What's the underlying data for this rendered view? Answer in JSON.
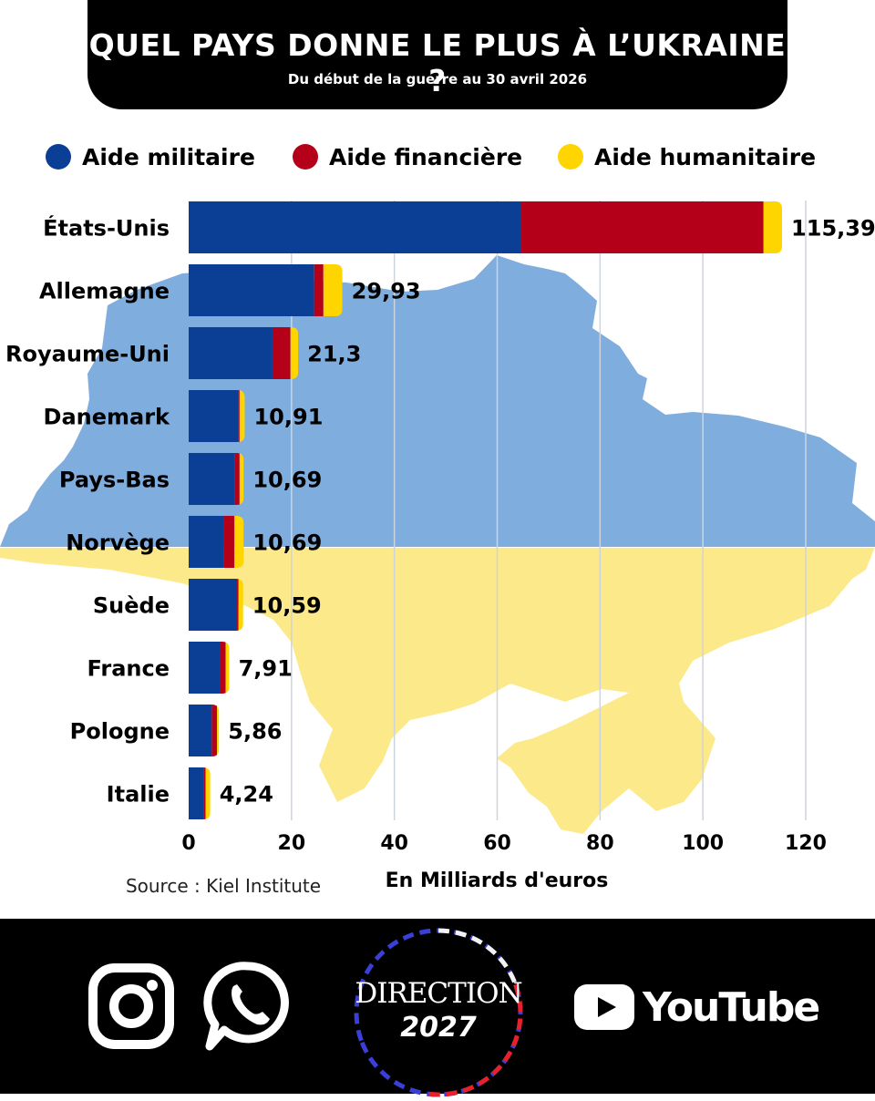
{
  "header": {
    "title": "QUEL PAYS DONNE LE PLUS À L’UKRAINE ?",
    "subtitle": "Du début de la guerre au 30 avril 2026"
  },
  "colors": {
    "military": "#0b3f95",
    "financial": "#b5001a",
    "humanitarian": "#ffd500",
    "map_top": "#7fadde",
    "map_bottom": "#fce98a",
    "grid": "#cdd4de"
  },
  "chart_data": {
    "type": "bar",
    "orientation": "horizontal",
    "stacked": true,
    "categories": [
      "États-Unis",
      "Allemagne",
      "Royaume-Uni",
      "Danemark",
      "Pays-Bas",
      "Norvège",
      "Suède",
      "France",
      "Pologne",
      "Italie"
    ],
    "series": [
      {
        "name": "Aide militaire",
        "color": "#0b3f95",
        "values": [
          64.7,
          24.4,
          16.3,
          9.6,
          9.0,
          6.9,
          9.4,
          6.2,
          4.5,
          3.0
        ]
      },
      {
        "name": "Aide financière",
        "color": "#b5001a",
        "values": [
          47.1,
          1.8,
          3.5,
          0.3,
          0.9,
          2.0,
          0.3,
          1.0,
          1.0,
          0.3
        ]
      },
      {
        "name": "Aide humanitaire",
        "color": "#ffd500",
        "values": [
          3.6,
          3.7,
          1.5,
          1.0,
          0.8,
          1.8,
          0.9,
          0.7,
          0.4,
          0.9
        ]
      }
    ],
    "totals": [
      "115,39",
      "29,93",
      "21,3",
      "10,91",
      "10,69",
      "10,69",
      "10,59",
      "7,91",
      "5,86",
      "4,24"
    ],
    "xlim": [
      0,
      120
    ],
    "xticks": [
      "0",
      "20",
      "40",
      "60",
      "80",
      "100",
      "120"
    ],
    "xtick_values": [
      0,
      20,
      40,
      60,
      80,
      100,
      120
    ],
    "xlabel": "En Milliards d'euros",
    "source": "Source : Kiel Institute",
    "legend_position": "top",
    "grid": true
  },
  "footer": {
    "logo_line1": "DIRECTION",
    "logo_line2": "2027",
    "youtube_text": "YouTube"
  }
}
